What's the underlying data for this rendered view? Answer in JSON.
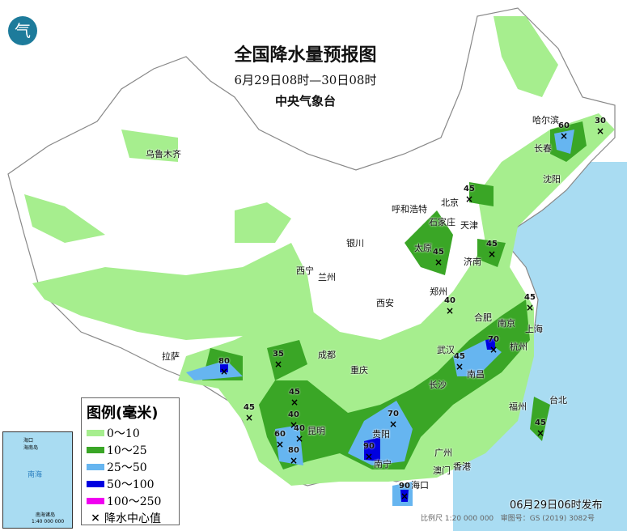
{
  "header": {
    "title": "全国降水量预报图",
    "period": "6月29日08时—30日08时",
    "issuer": "中央气象台",
    "logo_text": "气"
  },
  "legend": {
    "title": "图例(毫米)",
    "items": [
      {
        "label": "0～10",
        "color": "#a6ee8e"
      },
      {
        "label": "10～25",
        "color": "#3aa626"
      },
      {
        "label": "25～50",
        "color": "#66b5f0"
      },
      {
        "label": "50～100",
        "color": "#0000e0"
      },
      {
        "label": "100～250",
        "color": "#f000f0"
      }
    ],
    "center_label": "降水中心值"
  },
  "colors": {
    "sea": "#a9dcf2",
    "land": "#ffffff",
    "border": "#999999"
  },
  "cities": [
    {
      "name": "乌鲁木齐",
      "p": [
        180,
        182
      ]
    },
    {
      "name": "哈尔滨",
      "p": [
        658,
        140
      ]
    },
    {
      "name": "长春",
      "p": [
        660,
        175
      ]
    },
    {
      "name": "沈阳",
      "p": [
        671,
        213
      ]
    },
    {
      "name": "北京",
      "p": [
        545,
        242
      ]
    },
    {
      "name": "天津",
      "p": [
        569,
        270
      ]
    },
    {
      "name": "呼和浩特",
      "p": [
        484,
        250
      ]
    },
    {
      "name": "石家庄",
      "p": [
        530,
        266
      ]
    },
    {
      "name": "太原",
      "p": [
        512,
        298
      ]
    },
    {
      "name": "济南",
      "p": [
        573,
        315
      ]
    },
    {
      "name": "银川",
      "p": [
        428,
        292
      ]
    },
    {
      "name": "西宁",
      "p": [
        366,
        326
      ]
    },
    {
      "name": "兰州",
      "p": [
        393,
        334
      ]
    },
    {
      "name": "郑州",
      "p": [
        531,
        352
      ]
    },
    {
      "name": "西安",
      "p": [
        465,
        366
      ]
    },
    {
      "name": "合肥",
      "p": [
        586,
        384
      ]
    },
    {
      "name": "南京",
      "p": [
        615,
        391
      ]
    },
    {
      "name": "上海",
      "p": [
        649,
        398
      ]
    },
    {
      "name": "杭州",
      "p": [
        630,
        420
      ]
    },
    {
      "name": "武汉",
      "p": [
        540,
        424
      ]
    },
    {
      "name": "拉萨",
      "p": [
        200,
        432
      ]
    },
    {
      "name": "成都",
      "p": [
        393,
        430
      ]
    },
    {
      "name": "重庆",
      "p": [
        433,
        449
      ]
    },
    {
      "name": "长沙",
      "p": [
        530,
        467
      ]
    },
    {
      "name": "南昌",
      "p": [
        577,
        454
      ]
    },
    {
      "name": "福州",
      "p": [
        629,
        494
      ]
    },
    {
      "name": "台北",
      "p": [
        679,
        486
      ]
    },
    {
      "name": "贵阳",
      "p": [
        460,
        528
      ]
    },
    {
      "name": "昆明",
      "p": [
        380,
        524
      ]
    },
    {
      "name": "南宁",
      "p": [
        462,
        565
      ]
    },
    {
      "name": "广州",
      "p": [
        537,
        551
      ]
    },
    {
      "name": "澳门",
      "p": [
        535,
        573
      ]
    },
    {
      "name": "香港",
      "p": [
        560,
        568
      ]
    },
    {
      "name": "海口",
      "p": [
        508,
        591
      ]
    }
  ],
  "centers": [
    {
      "v": "60",
      "p": [
        696,
        159
      ]
    },
    {
      "v": "30",
      "p": [
        741,
        153
      ]
    },
    {
      "v": "45",
      "p": [
        579,
        237
      ]
    },
    {
      "v": "45",
      "p": [
        541,
        315
      ]
    },
    {
      "v": "45",
      "p": [
        607,
        305
      ]
    },
    {
      "v": "40",
      "p": [
        555,
        375
      ]
    },
    {
      "v": "45",
      "p": [
        654,
        371
      ]
    },
    {
      "v": "70",
      "p": [
        609,
        423
      ]
    },
    {
      "v": "45",
      "p": [
        567,
        444
      ]
    },
    {
      "v": "80",
      "p": [
        276,
        450
      ]
    },
    {
      "v": "35",
      "p": [
        343,
        441
      ]
    },
    {
      "v": "45",
      "p": [
        307,
        507
      ]
    },
    {
      "v": "45",
      "p": [
        363,
        488
      ]
    },
    {
      "v": "40",
      "p": [
        362,
        516
      ]
    },
    {
      "v": "60",
      "p": [
        345,
        540
      ]
    },
    {
      "v": "40",
      "p": [
        369,
        533
      ]
    },
    {
      "v": "80",
      "p": [
        362,
        560
      ]
    },
    {
      "v": "70",
      "p": [
        485,
        515
      ]
    },
    {
      "v": "90",
      "p": [
        455,
        555
      ]
    },
    {
      "v": "90",
      "p": [
        499,
        604
      ]
    },
    {
      "v": "45",
      "p": [
        667,
        526
      ]
    }
  ],
  "inset": {
    "labels": [
      "南海",
      "海南岛",
      "海口",
      "南海诸岛",
      "1:40 000 000"
    ]
  },
  "footer": {
    "issue_time": "06月29日06时发布",
    "scale": "比例尺 1:20 000 000",
    "approval": "审图号：GS (2019) 3082号"
  }
}
